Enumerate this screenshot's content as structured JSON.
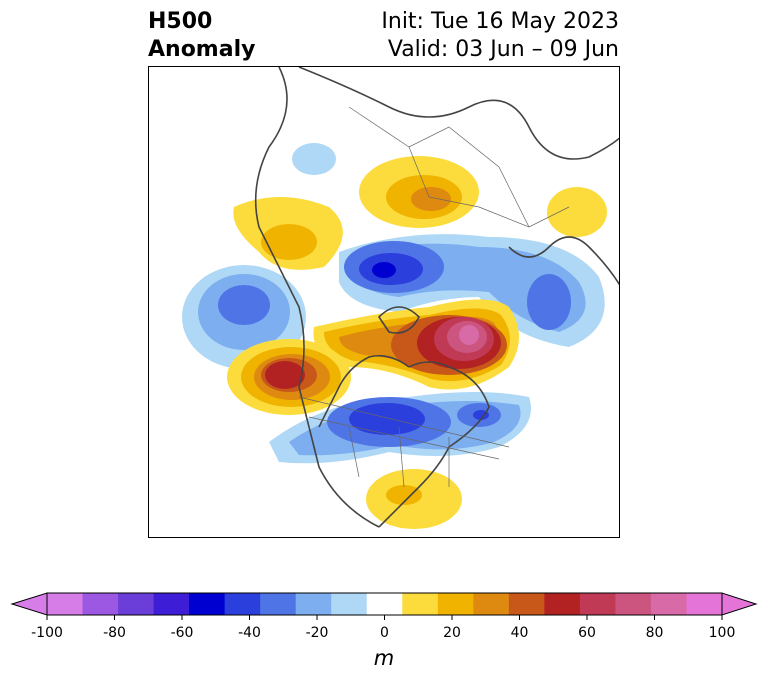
{
  "header": {
    "title_line1": "H500",
    "title_line2": "Anomaly",
    "init_text": "Init: Tue 16 May 2023",
    "valid_text": "Valid: 03 Jun – 09 Jun"
  },
  "colorbar": {
    "unit": "m",
    "levels": [
      -100,
      -90,
      -80,
      -70,
      -60,
      -50,
      -40,
      -30,
      -20,
      -10,
      10,
      20,
      30,
      40,
      50,
      60,
      70,
      80,
      90,
      100
    ],
    "tick_labels": [
      "-100",
      "-80",
      "-60",
      "-40",
      "-20",
      "0",
      "20",
      "40",
      "60",
      "80",
      "100"
    ],
    "colors": [
      "#d67de8",
      "#9c58e3",
      "#6c3ed9",
      "#3d1ed6",
      "#0000d0",
      "#2b3fdc",
      "#4f74e6",
      "#7daef0",
      "#aed8f6",
      "#ffffff",
      "#fcdc3c",
      "#f0b400",
      "#de8a10",
      "#c8581a",
      "#b22222",
      "#c03a55",
      "#cc5580",
      "#d86aa8",
      "#e474d8"
    ],
    "under_color": "#d67de8",
    "over_color": "#e474d8"
  },
  "map": {
    "projection": "north polar stereographic",
    "region": "Northern Hemisphere centered on North America"
  }
}
